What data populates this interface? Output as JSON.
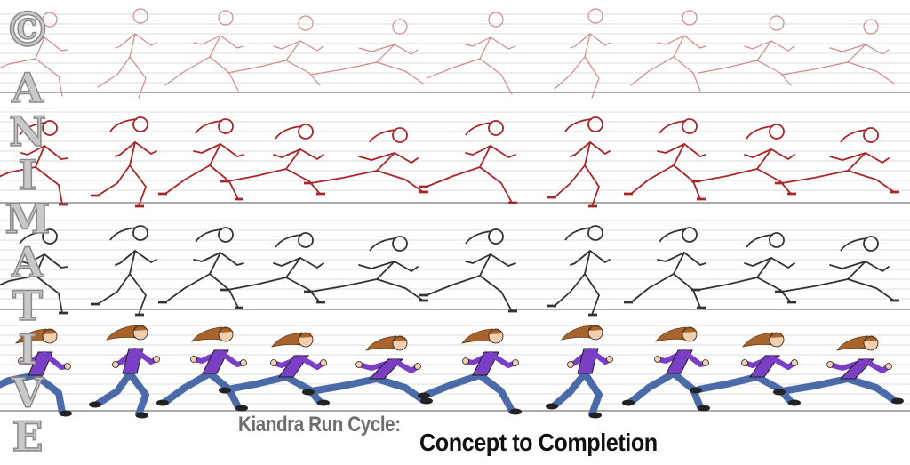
{
  "title": {
    "line1": "Kiandra Run Cycle:",
    "line2": "Concept to Completion"
  },
  "watermark": {
    "copyright_symbol": "©",
    "letters": [
      "A",
      "N",
      "I",
      "M",
      "A",
      "T",
      "I",
      "V",
      "E"
    ]
  },
  "rows": [
    {
      "stage": "rough-sketch",
      "frames": 10,
      "line_color": "#d08a8a"
    },
    {
      "stage": "tightened-sketch",
      "frames": 10,
      "line_color": "#a8262a"
    },
    {
      "stage": "clean-lineart",
      "frames": 10,
      "line_color": "#333333"
    },
    {
      "stage": "colored",
      "frames": 10,
      "colors": {
        "hair": "#a8642c",
        "shirt": "#7a3fc4",
        "pants": "#4a6aa8",
        "skin": "#f3cfae",
        "shoes": "#222222"
      }
    }
  ]
}
